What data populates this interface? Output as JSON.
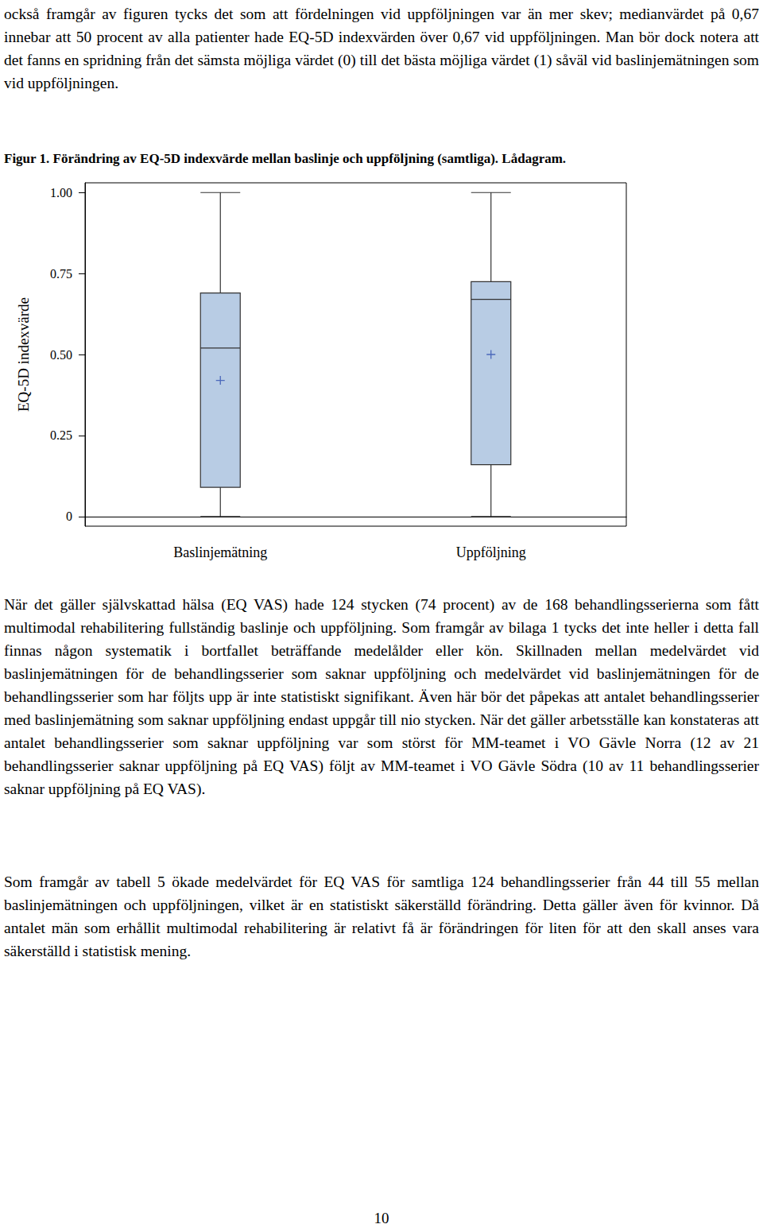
{
  "paragraphs_before": [
    "också framgår av figuren tycks det som att fördelningen vid uppföljningen var än mer skev; medianvärdet på 0,67 innebar att 50 procent av alla patienter hade EQ-5D indexvärden över 0,67 vid uppföljningen. Man bör dock notera att det fanns en spridning från det sämsta möjliga värdet (0) till det bästa möjliga värdet (1) såväl vid baslinjemätningen som vid uppföljningen."
  ],
  "caption": "Figur 1. Förändring av EQ-5D indexvärde mellan baslinje och uppföljning (samtliga). Lådagram.",
  "chart_data": {
    "type": "boxplot",
    "y_label": "EQ-5D indexvärde",
    "categories": [
      "Baslinjemätning",
      "Uppföljning"
    ],
    "values": [
      [
        0,
        0.09,
        0.52,
        0.69,
        1.0
      ],
      [
        0,
        0.16,
        0.67,
        0.725,
        1.0
      ]
    ],
    "means": [
      0.42,
      0.5
    ],
    "marker": "plus",
    "color": "#b8cce4",
    "ylim": [
      -0.03,
      1.03
    ],
    "yticks": [
      0,
      0.25,
      {
        "value": 0.5,
        "label": "0.50"
      },
      0.75,
      {
        "value": 1.0,
        "label": "1.00"
      }
    ],
    "grid": false
  },
  "paragraphs_after": [
    "När det gäller självskattad hälsa (EQ VAS) hade 124 stycken (74 procent) av de 168 behandlingsserierna som fått multimodal rehabilitering fullständig baslinje och uppföljning. Som framgår av bilaga 1 tycks det inte heller i detta fall finnas någon systematik i bortfallet beträffande medelålder eller kön. Skillnaden mellan medelvärdet vid baslinjemätningen för de behandlingsserier som saknar uppföljning och medelvärdet vid baslinjemätningen för de behandlingsserier som har följts upp är inte statistiskt signifikant. Även här bör det påpekas att antalet behandlingsserier med baslinjemätning som saknar uppföljning endast uppgår till nio stycken. När det gäller arbetsställe kan konstateras att antalet behandlingsserier som saknar uppföljning var som störst för MM-teamet i VO Gävle Norra (12 av 21 behandlingsserier saknar uppföljning på EQ VAS) följt av MM-teamet i VO Gävle Södra (10 av 11 behandlingsserier saknar uppföljning på EQ VAS).",
    "Som framgår av tabell 5 ökade medelvärdet för EQ VAS för samtliga 124 behandlingsserier från 44 till 55 mellan baslinjemätningen och uppföljningen, vilket är en statistiskt säkerställd förändring. Detta gäller även för kvinnor. Då antalet män som erhållit multimodal rehabilitering är relativt få är förändringen för liten för att den skall anses vara säkerställd i statistisk mening."
  ],
  "page_number": "10"
}
